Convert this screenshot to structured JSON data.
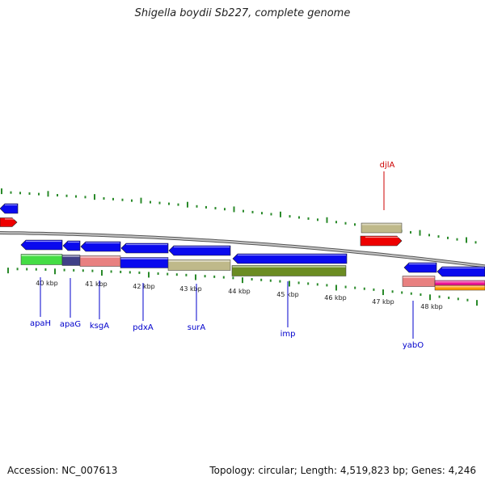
{
  "title": "Shigella boydii Sb227, complete genome",
  "footer": {
    "accession": "Accession: NC_007613",
    "summary": "Topology: circular; Length: 4,519,823 bp; Genes: 4,246"
  },
  "ruler": {
    "ticks": [
      {
        "label": "40 kbp"
      },
      {
        "label": "41 kbp"
      },
      {
        "label": "42 kbp"
      },
      {
        "label": "43 kbp"
      },
      {
        "label": "44 kbp"
      },
      {
        "label": "45 kbp"
      },
      {
        "label": "46 kbp"
      },
      {
        "label": "47 kbp"
      },
      {
        "label": "48 kbp"
      }
    ]
  },
  "genes": {
    "forward": [
      {
        "name": "djlA",
        "color": "#cc0000"
      }
    ],
    "reverse": [
      {
        "name": "apaH",
        "color": "#0000cc"
      },
      {
        "name": "apaG",
        "color": "#0000cc"
      },
      {
        "name": "ksgA",
        "color": "#0000cc"
      },
      {
        "name": "pdxA",
        "color": "#0000cc"
      },
      {
        "name": "surA",
        "color": "#0000cc"
      },
      {
        "name": "imp",
        "color": "#0000cc"
      },
      {
        "name": "yabO",
        "color": "#0000cc"
      }
    ]
  },
  "colors": {
    "blue": "#0a0aee",
    "red": "#ee0000",
    "green": "#44dd44",
    "navy": "#404088",
    "salmon": "#e88080",
    "khaki": "#bfb98a",
    "olive": "#6b8c22",
    "magenta": "#ee1493",
    "orange": "#ff9900",
    "tick": "#2a8a2a",
    "backbone": "#9a9a9a"
  }
}
